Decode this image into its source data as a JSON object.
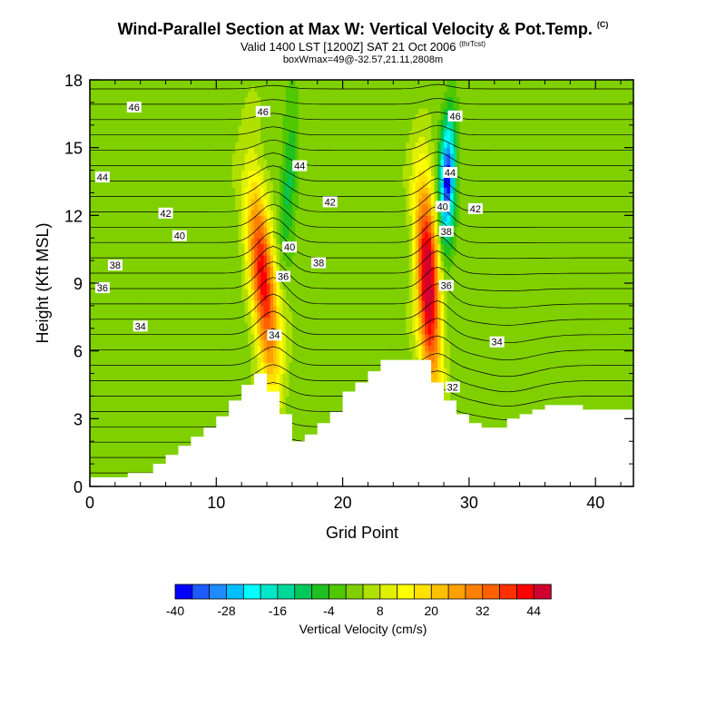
{
  "title": "Wind-Parallel Section at Max W: Vertical Velocity & Pot.Temp.",
  "copyright": "(C)",
  "subtitle": "Valid 1400 LST [1200Z] SAT 21 Oct 2006",
  "subtitle_tag": "(thrTcst)",
  "boxline": "boxWmax=49@-32.57,21.11,2808m",
  "chart_data": {
    "type": "heatmap",
    "xlabel": "Grid Point",
    "ylabel": "Height (Kft MSL)",
    "xlim": [
      0,
      43
    ],
    "ylim": [
      0,
      18
    ],
    "xticks": [
      0,
      10,
      20,
      30,
      40
    ],
    "yticks": [
      0,
      3,
      6,
      9,
      12,
      15,
      18
    ],
    "colorbar": {
      "label": "Vertical Velocity (cm/s)",
      "tick_labels": [
        "-40",
        "-28",
        "-16",
        "-4",
        "8",
        "20",
        "32",
        "44"
      ],
      "tick_values": [
        -40,
        -28,
        -16,
        -4,
        8,
        20,
        32,
        44
      ],
      "bins_start": -40,
      "bin_width": 4,
      "colors": [
        "#0000ff",
        "#1e5aff",
        "#1e8cff",
        "#00bfff",
        "#00ffff",
        "#00e8c8",
        "#00d89a",
        "#00c85a",
        "#20c020",
        "#50c800",
        "#80d000",
        "#b0e000",
        "#e0f000",
        "#ffff00",
        "#ffe000",
        "#ffc000",
        "#ffa000",
        "#ff8000",
        "#ff6000",
        "#ff3000",
        "#ff0000",
        "#d00030"
      ]
    },
    "terrain": {
      "x": [
        0,
        3,
        3,
        5,
        5,
        6,
        6,
        7,
        7,
        8,
        8,
        9,
        9,
        10,
        10,
        11,
        11,
        12,
        12,
        13,
        13,
        14,
        14,
        15,
        15,
        16,
        16,
        17,
        17,
        18,
        18,
        19,
        19,
        20,
        20,
        21,
        21,
        22,
        22,
        23,
        23,
        24,
        24,
        25,
        25,
        26,
        26,
        27,
        27,
        28,
        28,
        29,
        29,
        30,
        30,
        31,
        31,
        32,
        32,
        33,
        33,
        34,
        34,
        35,
        35,
        36,
        36,
        37,
        37,
        38,
        38,
        39,
        39,
        43
      ],
      "height_kft": [
        0.4,
        0.4,
        0.6,
        0.6,
        1.0,
        1.0,
        1.4,
        1.4,
        1.8,
        1.8,
        2.2,
        2.2,
        2.6,
        2.6,
        3.1,
        3.1,
        3.8,
        3.8,
        4.5,
        4.5,
        5.0,
        5.0,
        4.2,
        4.2,
        3.2,
        3.2,
        2.0,
        2.0,
        2.3,
        2.3,
        2.8,
        2.8,
        3.3,
        3.3,
        4.2,
        4.2,
        4.6,
        4.6,
        5.1,
        5.1,
        5.6,
        5.6,
        5.6,
        5.6,
        5.6,
        5.6,
        5.6,
        5.6,
        4.6,
        4.6,
        3.8,
        3.8,
        3.2,
        3.2,
        2.8,
        2.8,
        2.6,
        2.6,
        2.6,
        2.6,
        3.0,
        3.0,
        3.2,
        3.2,
        3.4,
        3.4,
        3.6,
        3.6,
        3.6,
        3.6,
        3.6,
        3.6,
        3.4,
        3.4
      ]
    },
    "updrafts": [
      {
        "x": 14.2,
        "slope": 0.16,
        "peak_cm_s": 40,
        "width": 1.0
      },
      {
        "x": 27.0,
        "slope": 0.08,
        "peak_cm_s": 49,
        "width": 0.9
      }
    ],
    "downdrafts": [
      {
        "x": 15.6,
        "slope": 0.16,
        "peak_cm_s": -12,
        "width": 0.6
      },
      {
        "x": 28.2,
        "slope": 0.08,
        "peak_cm_s": -40,
        "width": 0.6
      }
    ],
    "contour_labels": [
      {
        "text": "46",
        "x": 3.5,
        "y": 16.8
      },
      {
        "text": "44",
        "x": 1.0,
        "y": 13.7
      },
      {
        "text": "42",
        "x": 6.0,
        "y": 12.1
      },
      {
        "text": "40",
        "x": 7.1,
        "y": 11.1
      },
      {
        "text": "38",
        "x": 2.0,
        "y": 9.8
      },
      {
        "text": "36",
        "x": 1.0,
        "y": 8.8
      },
      {
        "text": "34",
        "x": 4.0,
        "y": 7.1
      },
      {
        "text": "46",
        "x": 13.7,
        "y": 16.6
      },
      {
        "text": "44",
        "x": 16.6,
        "y": 14.2
      },
      {
        "text": "42",
        "x": 19.0,
        "y": 12.6
      },
      {
        "text": "40",
        "x": 15.8,
        "y": 10.6
      },
      {
        "text": "38",
        "x": 18.1,
        "y": 9.9
      },
      {
        "text": "36",
        "x": 15.3,
        "y": 9.3
      },
      {
        "text": "34",
        "x": 14.6,
        "y": 6.7
      },
      {
        "text": "46",
        "x": 28.9,
        "y": 16.4
      },
      {
        "text": "44",
        "x": 28.5,
        "y": 13.9
      },
      {
        "text": "40",
        "x": 27.9,
        "y": 12.4
      },
      {
        "text": "42",
        "x": 30.5,
        "y": 12.3
      },
      {
        "text": "38",
        "x": 28.2,
        "y": 11.3
      },
      {
        "text": "36",
        "x": 28.2,
        "y": 8.9
      },
      {
        "text": "34",
        "x": 32.2,
        "y": 6.4
      },
      {
        "text": "32",
        "x": 28.7,
        "y": 4.4
      }
    ]
  }
}
